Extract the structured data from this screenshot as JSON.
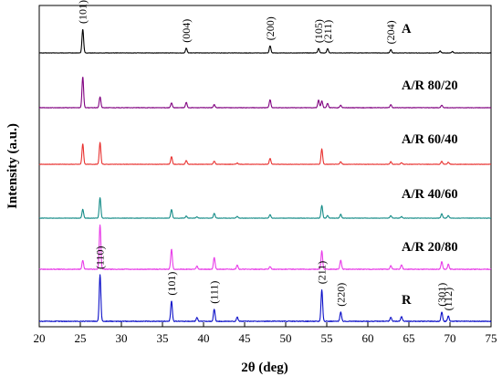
{
  "chart_data": {
    "type": "line",
    "title": "",
    "xlabel": "2θ (deg)",
    "ylabel": "Intensity (a.u.)",
    "xlim": [
      20,
      75
    ],
    "x_ticks": [
      20,
      25,
      30,
      35,
      40,
      45,
      50,
      55,
      60,
      65,
      70,
      75
    ],
    "y_ticks_shown": false,
    "grid": false,
    "legend": "labels printed next to each trace on the right side",
    "series": [
      {
        "name": "A",
        "color": "#000000",
        "peaks": [
          [
            25.3,
            1.0
          ],
          [
            37.9,
            0.2
          ],
          [
            48.1,
            0.3
          ],
          [
            54.0,
            0.19
          ],
          [
            55.1,
            0.18
          ],
          [
            62.8,
            0.14
          ],
          [
            68.8,
            0.08
          ],
          [
            70.3,
            0.06
          ]
        ]
      },
      {
        "name": "A/R 80/20",
        "color": "#800080",
        "peaks": [
          [
            25.3,
            1.0
          ],
          [
            27.4,
            0.35
          ],
          [
            36.1,
            0.15
          ],
          [
            37.9,
            0.17
          ],
          [
            41.3,
            0.1
          ],
          [
            48.1,
            0.26
          ],
          [
            54.0,
            0.24
          ],
          [
            54.4,
            0.22
          ],
          [
            55.1,
            0.14
          ],
          [
            56.7,
            0.08
          ],
          [
            62.8,
            0.1
          ],
          [
            69.0,
            0.08
          ]
        ]
      },
      {
        "name": "A/R 60/40",
        "color": "#e8302e",
        "peaks": [
          [
            25.3,
            0.8
          ],
          [
            27.4,
            0.85
          ],
          [
            36.1,
            0.3
          ],
          [
            37.9,
            0.15
          ],
          [
            41.3,
            0.13
          ],
          [
            44.1,
            0.05
          ],
          [
            48.1,
            0.23
          ],
          [
            54.4,
            0.6
          ],
          [
            56.7,
            0.1
          ],
          [
            62.8,
            0.1
          ],
          [
            64.1,
            0.06
          ],
          [
            69.0,
            0.12
          ],
          [
            69.8,
            0.08
          ]
        ]
      },
      {
        "name": "A/R 40/60",
        "color": "#138b87",
        "peaks": [
          [
            25.3,
            0.35
          ],
          [
            27.4,
            0.8
          ],
          [
            36.1,
            0.34
          ],
          [
            37.9,
            0.08
          ],
          [
            39.2,
            0.05
          ],
          [
            41.3,
            0.19
          ],
          [
            44.1,
            0.07
          ],
          [
            48.1,
            0.14
          ],
          [
            54.4,
            0.5
          ],
          [
            55.1,
            0.1
          ],
          [
            56.7,
            0.15
          ],
          [
            62.8,
            0.1
          ],
          [
            64.1,
            0.06
          ],
          [
            69.0,
            0.17
          ],
          [
            69.8,
            0.1
          ]
        ]
      },
      {
        "name": "A/R 20/80",
        "color": "#e83ce8",
        "peaks": [
          [
            25.3,
            0.2
          ],
          [
            27.4,
            1.0
          ],
          [
            36.1,
            0.45
          ],
          [
            39.2,
            0.07
          ],
          [
            41.3,
            0.27
          ],
          [
            44.1,
            0.1
          ],
          [
            48.1,
            0.06
          ],
          [
            54.4,
            0.41
          ],
          [
            56.7,
            0.2
          ],
          [
            62.8,
            0.08
          ],
          [
            64.1,
            0.1
          ],
          [
            69.0,
            0.17
          ],
          [
            69.8,
            0.11
          ]
        ]
      },
      {
        "name": "R",
        "color": "#0b0fc8",
        "peaks": [
          [
            27.4,
            1.0
          ],
          [
            36.1,
            0.44
          ],
          [
            39.2,
            0.08
          ],
          [
            41.3,
            0.26
          ],
          [
            44.1,
            0.09
          ],
          [
            54.4,
            0.68
          ],
          [
            56.7,
            0.2
          ],
          [
            62.8,
            0.09
          ],
          [
            64.1,
            0.1
          ],
          [
            69.0,
            0.2
          ],
          [
            69.8,
            0.11
          ]
        ]
      }
    ],
    "annotations": [
      {
        "series": "A",
        "label": "(101)",
        "x": 25.3
      },
      {
        "series": "A",
        "label": "(004)",
        "x": 37.9
      },
      {
        "series": "A",
        "label": "(200)",
        "x": 48.1
      },
      {
        "series": "A",
        "label": "(105)",
        "x": 54.0
      },
      {
        "series": "A",
        "label": "(211)",
        "x": 55.1
      },
      {
        "series": "A",
        "label": "(204)",
        "x": 62.8
      },
      {
        "series": "R",
        "label": "(110)",
        "x": 27.4
      },
      {
        "series": "R",
        "label": "(101)",
        "x": 36.1
      },
      {
        "series": "R",
        "label": "(111)",
        "x": 41.3
      },
      {
        "series": "R",
        "label": "(211)",
        "x": 54.4
      },
      {
        "series": "R",
        "label": "(220)",
        "x": 56.7
      },
      {
        "series": "R",
        "label": "(301)",
        "x": 69.0
      },
      {
        "series": "R",
        "label": "(112)",
        "x": 69.8
      }
    ]
  }
}
